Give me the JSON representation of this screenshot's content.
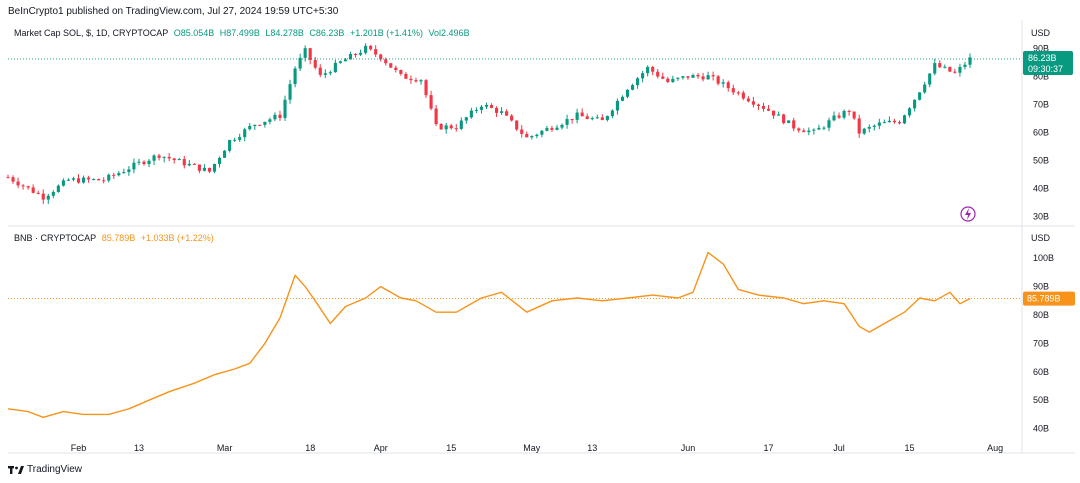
{
  "header": {
    "published": "BeInCrypto1 published on TradingView.com, Jul 27, 2024 19:59 UTC+5:30"
  },
  "panes": [
    {
      "legend": {
        "symbol": "Market Cap SOL, $, 1D, CRYPTOCAP",
        "o": "O85.054B",
        "h": "H87.499B",
        "l": "L84.278B",
        "c": "C86.23B",
        "change": "+1.201B (+1.41%)",
        "vol": "Vol2.496B"
      },
      "currency": "USD",
      "price_label": "86.23B",
      "countdown": "09:30:37",
      "y_ticks": [
        "90B",
        "80B",
        "70B",
        "60B",
        "50B",
        "40B",
        "30B"
      ]
    },
    {
      "legend": {
        "symbol": "BNB · CRYPTOCAP",
        "value": "85.789B",
        "change": "+1.033B (+1.22%)"
      },
      "currency": "USD",
      "price_label": "85.789B",
      "y_ticks": [
        "100B",
        "90B",
        "80B",
        "70B",
        "60B",
        "50B",
        "40B"
      ]
    }
  ],
  "x_axis": [
    "Feb",
    "13",
    "Mar",
    "18",
    "Apr",
    "15",
    "May",
    "13",
    "Jun",
    "17",
    "Jul",
    "15",
    "Aug"
  ],
  "footer": {
    "brand": "TradingView"
  },
  "colors": {
    "up": "#089981",
    "down": "#f23645",
    "line": "#f7931a",
    "grid": "#e0e3eb"
  },
  "chart_data": [
    {
      "type": "candlestick",
      "title": "Market Cap SOL, $, 1D, CRYPTOCAP",
      "ylim": [
        28,
        93
      ],
      "x_range": [
        "2024-01-18",
        "2024-07-27"
      ],
      "close_trend": [
        {
          "x": "2024-01-18",
          "y": 44
        },
        {
          "x": "2024-01-22",
          "y": 40
        },
        {
          "x": "2024-01-25",
          "y": 37
        },
        {
          "x": "2024-01-30",
          "y": 43
        },
        {
          "x": "2024-02-06",
          "y": 43
        },
        {
          "x": "2024-02-13",
          "y": 49
        },
        {
          "x": "2024-02-17",
          "y": 52
        },
        {
          "x": "2024-02-22",
          "y": 49
        },
        {
          "x": "2024-02-27",
          "y": 46
        },
        {
          "x": "2024-03-02",
          "y": 57
        },
        {
          "x": "2024-03-07",
          "y": 63
        },
        {
          "x": "2024-03-12",
          "y": 66
        },
        {
          "x": "2024-03-15",
          "y": 83
        },
        {
          "x": "2024-03-17",
          "y": 89
        },
        {
          "x": "2024-03-20",
          "y": 80
        },
        {
          "x": "2024-03-24",
          "y": 85
        },
        {
          "x": "2024-03-29",
          "y": 90
        },
        {
          "x": "2024-04-01",
          "y": 87
        },
        {
          "x": "2024-04-05",
          "y": 80
        },
        {
          "x": "2024-04-09",
          "y": 79
        },
        {
          "x": "2024-04-12",
          "y": 62
        },
        {
          "x": "2024-04-16",
          "y": 62
        },
        {
          "x": "2024-04-21",
          "y": 70
        },
        {
          "x": "2024-04-25",
          "y": 67
        },
        {
          "x": "2024-04-30",
          "y": 58
        },
        {
          "x": "2024-05-05",
          "y": 62
        },
        {
          "x": "2024-05-10",
          "y": 66
        },
        {
          "x": "2024-05-15",
          "y": 64
        },
        {
          "x": "2024-05-20",
          "y": 76
        },
        {
          "x": "2024-05-24",
          "y": 83
        },
        {
          "x": "2024-05-28",
          "y": 78
        },
        {
          "x": "2024-06-01",
          "y": 80
        },
        {
          "x": "2024-06-05",
          "y": 80
        },
        {
          "x": "2024-06-08",
          "y": 77
        },
        {
          "x": "2024-06-12",
          "y": 73
        },
        {
          "x": "2024-06-17",
          "y": 68
        },
        {
          "x": "2024-06-22",
          "y": 62
        },
        {
          "x": "2024-06-26",
          "y": 60
        },
        {
          "x": "2024-06-30",
          "y": 65
        },
        {
          "x": "2024-07-03",
          "y": 68
        },
        {
          "x": "2024-07-05",
          "y": 60
        },
        {
          "x": "2024-07-09",
          "y": 63
        },
        {
          "x": "2024-07-13",
          "y": 64
        },
        {
          "x": "2024-07-16",
          "y": 72
        },
        {
          "x": "2024-07-20",
          "y": 84
        },
        {
          "x": "2024-07-24",
          "y": 81
        },
        {
          "x": "2024-07-27",
          "y": 86.23
        }
      ]
    },
    {
      "type": "line",
      "title": "BNB · CRYPTOCAP",
      "ylim": [
        36,
        105
      ],
      "x_range": [
        "2024-01-18",
        "2024-07-27"
      ],
      "series": [
        {
          "points": [
            {
              "x": "2024-01-18",
              "y": 47
            },
            {
              "x": "2024-01-22",
              "y": 46
            },
            {
              "x": "2024-01-25",
              "y": 44
            },
            {
              "x": "2024-01-29",
              "y": 46
            },
            {
              "x": "2024-02-02",
              "y": 45
            },
            {
              "x": "2024-02-07",
              "y": 45
            },
            {
              "x": "2024-02-11",
              "y": 47
            },
            {
              "x": "2024-02-15",
              "y": 50
            },
            {
              "x": "2024-02-19",
              "y": 53
            },
            {
              "x": "2024-02-24",
              "y": 56
            },
            {
              "x": "2024-02-28",
              "y": 59
            },
            {
              "x": "2024-03-03",
              "y": 61
            },
            {
              "x": "2024-03-06",
              "y": 63
            },
            {
              "x": "2024-03-09",
              "y": 70
            },
            {
              "x": "2024-03-12",
              "y": 79
            },
            {
              "x": "2024-03-15",
              "y": 94
            },
            {
              "x": "2024-03-17",
              "y": 90
            },
            {
              "x": "2024-03-19",
              "y": 85
            },
            {
              "x": "2024-03-22",
              "y": 77
            },
            {
              "x": "2024-03-25",
              "y": 83
            },
            {
              "x": "2024-03-29",
              "y": 86
            },
            {
              "x": "2024-04-01",
              "y": 90
            },
            {
              "x": "2024-04-05",
              "y": 86
            },
            {
              "x": "2024-04-08",
              "y": 85
            },
            {
              "x": "2024-04-12",
              "y": 81
            },
            {
              "x": "2024-04-16",
              "y": 81
            },
            {
              "x": "2024-04-21",
              "y": 86
            },
            {
              "x": "2024-04-25",
              "y": 88
            },
            {
              "x": "2024-04-30",
              "y": 81
            },
            {
              "x": "2024-05-05",
              "y": 85
            },
            {
              "x": "2024-05-10",
              "y": 86
            },
            {
              "x": "2024-05-15",
              "y": 85
            },
            {
              "x": "2024-05-20",
              "y": 86
            },
            {
              "x": "2024-05-25",
              "y": 87
            },
            {
              "x": "2024-05-30",
              "y": 86
            },
            {
              "x": "2024-06-02",
              "y": 88
            },
            {
              "x": "2024-06-05",
              "y": 102
            },
            {
              "x": "2024-06-08",
              "y": 98
            },
            {
              "x": "2024-06-11",
              "y": 89
            },
            {
              "x": "2024-06-15",
              "y": 87
            },
            {
              "x": "2024-06-20",
              "y": 86
            },
            {
              "x": "2024-06-24",
              "y": 84
            },
            {
              "x": "2024-06-28",
              "y": 85
            },
            {
              "x": "2024-07-02",
              "y": 84
            },
            {
              "x": "2024-07-05",
              "y": 76
            },
            {
              "x": "2024-07-07",
              "y": 74
            },
            {
              "x": "2024-07-10",
              "y": 77
            },
            {
              "x": "2024-07-14",
              "y": 81
            },
            {
              "x": "2024-07-17",
              "y": 86
            },
            {
              "x": "2024-07-20",
              "y": 85
            },
            {
              "x": "2024-07-23",
              "y": 88
            },
            {
              "x": "2024-07-25",
              "y": 84
            },
            {
              "x": "2024-07-27",
              "y": 85.789
            }
          ]
        }
      ]
    }
  ]
}
